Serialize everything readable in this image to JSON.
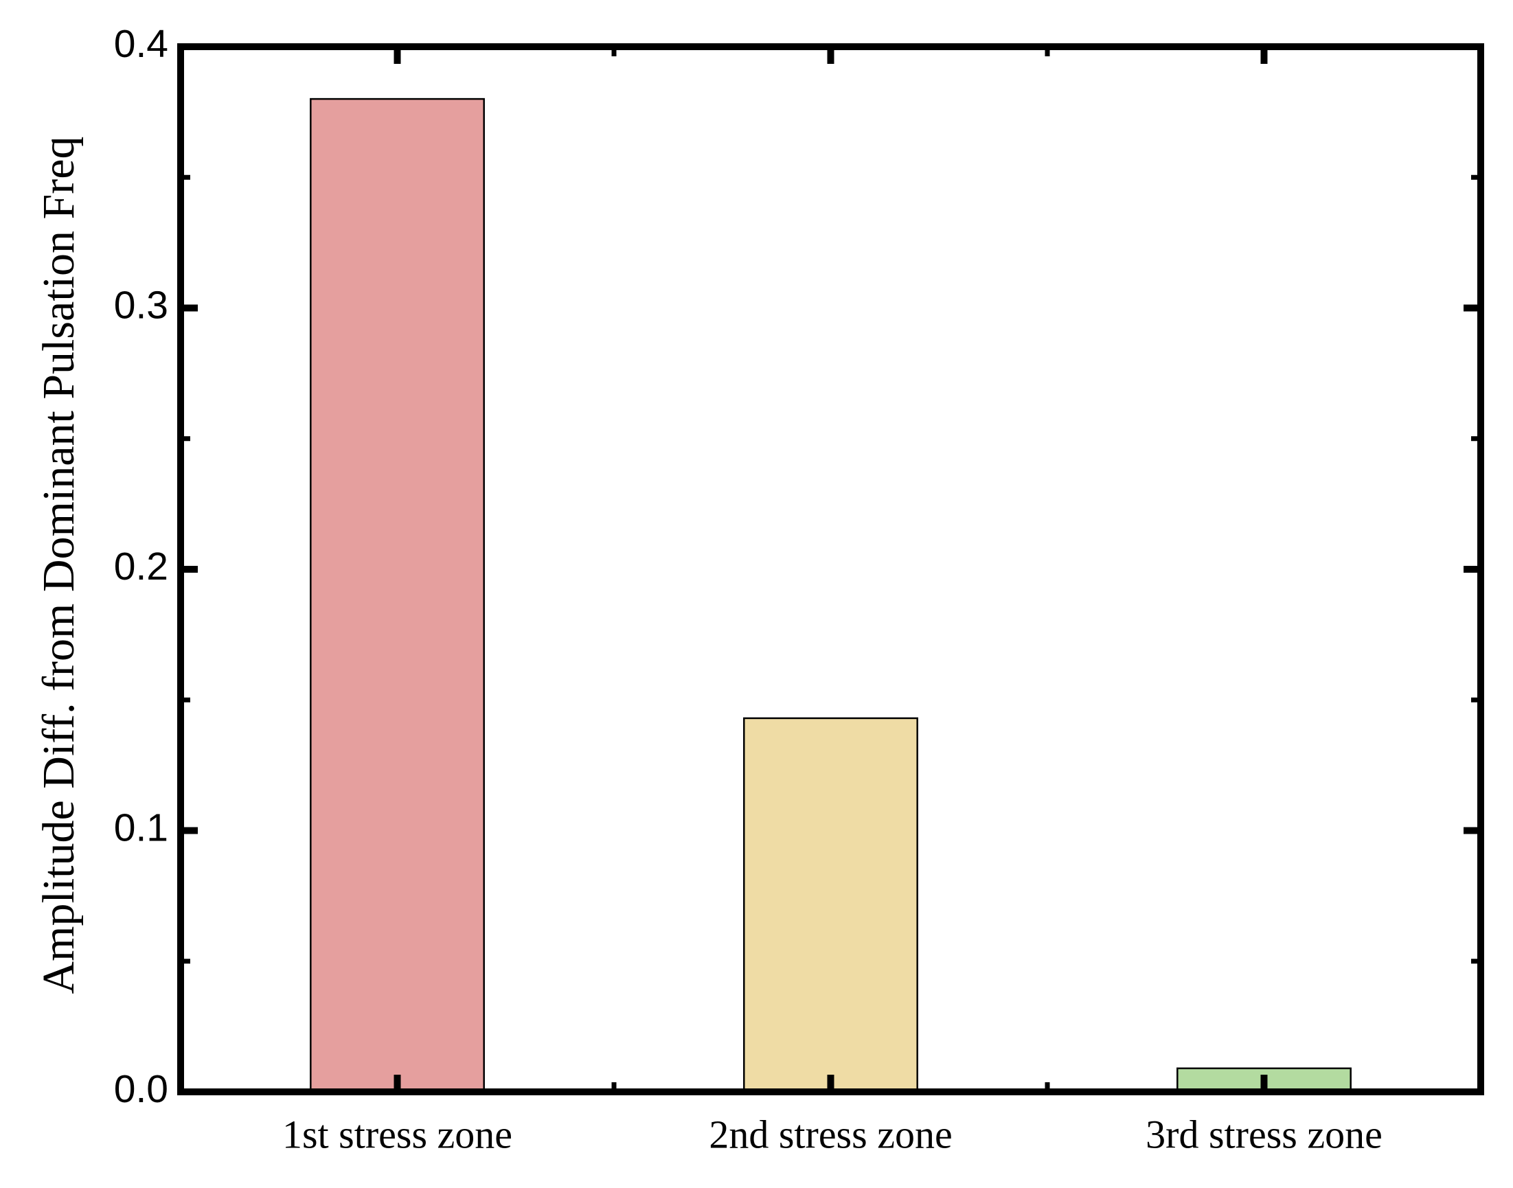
{
  "chart_data": {
    "type": "bar",
    "y_label": "Amplitude Diff. from Dominant Pulsation Freq",
    "categories": [
      "1st stress zone",
      "2nd stress zone",
      "3rd stress zone"
    ],
    "values": [
      0.38,
      0.143,
      0.009
    ],
    "colors": [
      "#e59f9e",
      "#efdca5",
      "#b3dba0"
    ],
    "ylim": [
      0,
      0.4
    ],
    "yticks": [
      {
        "value": 0,
        "label": "0.0"
      },
      0.1,
      0.2,
      0.3,
      0.4
    ],
    "yminorticks": [
      0.05,
      0.15,
      0.25,
      0.35
    ],
    "grid": false
  }
}
